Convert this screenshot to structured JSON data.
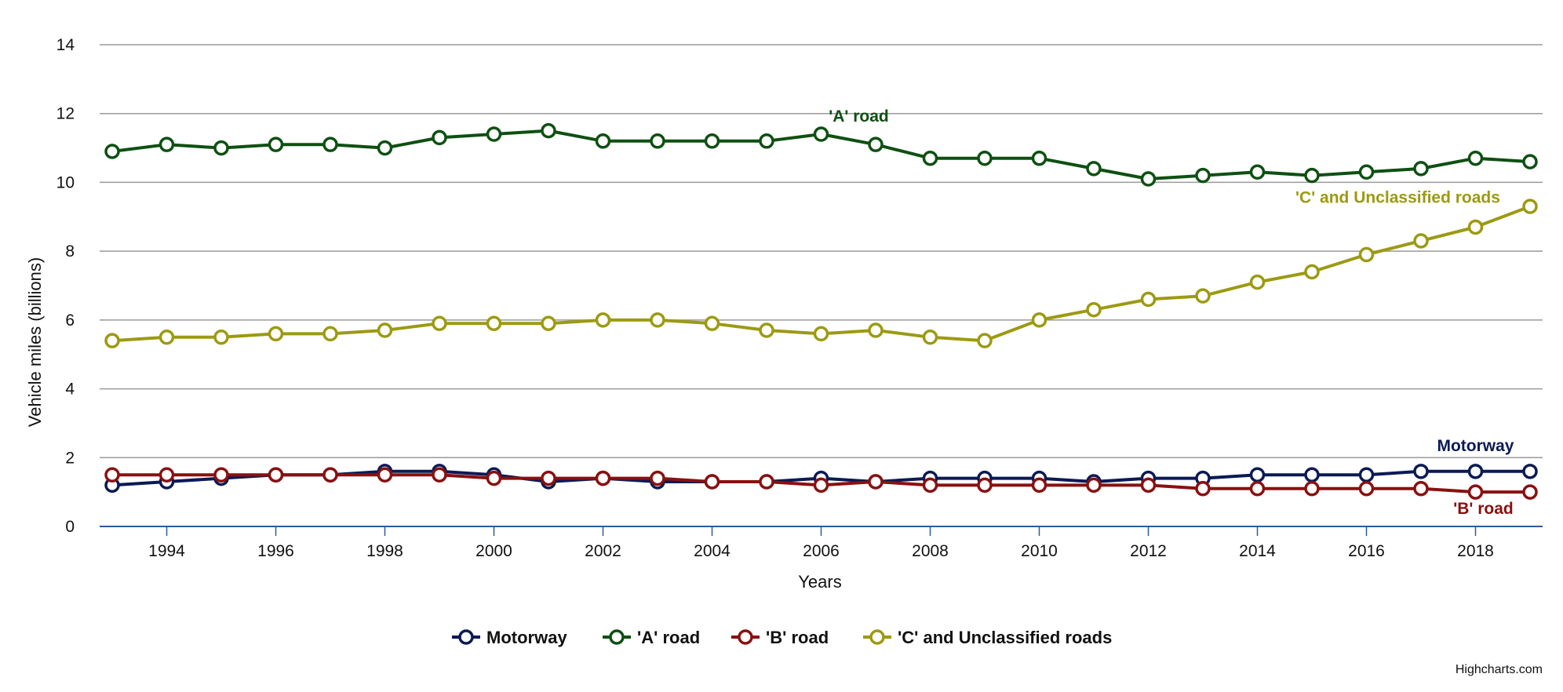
{
  "chart_data": {
    "type": "line",
    "title": "",
    "xlabel": "Years",
    "ylabel": "Vehicle miles (billions)",
    "ylim": [
      0,
      14
    ],
    "yticks": [
      0,
      2,
      4,
      6,
      8,
      10,
      12,
      14
    ],
    "xlim": [
      1993,
      2019
    ],
    "xticks": [
      1994,
      1996,
      1998,
      2000,
      2002,
      2004,
      2006,
      2008,
      2010,
      2012,
      2014,
      2016,
      2018
    ],
    "grid": "horizontal",
    "legend": "bottom-center",
    "x": [
      1993,
      1994,
      1995,
      1996,
      1997,
      1998,
      1999,
      2000,
      2001,
      2002,
      2003,
      2004,
      2005,
      2006,
      2007,
      2008,
      2009,
      2010,
      2011,
      2012,
      2013,
      2014,
      2015,
      2016,
      2017,
      2018,
      2019
    ],
    "series": [
      {
        "name": "Motorway",
        "color": "#0b1a54",
        "label": "Motorway",
        "values": [
          1.2,
          1.3,
          1.4,
          1.5,
          1.5,
          1.6,
          1.6,
          1.5,
          1.3,
          1.4,
          1.3,
          1.3,
          1.3,
          1.4,
          1.3,
          1.4,
          1.4,
          1.4,
          1.3,
          1.4,
          1.4,
          1.5,
          1.5,
          1.5,
          1.6,
          1.6,
          1.6
        ]
      },
      {
        "name": "'A' road",
        "color": "#0e5012",
        "label": "'A' road",
        "values": [
          10.9,
          11.1,
          11.0,
          11.1,
          11.1,
          11.0,
          11.3,
          11.4,
          11.5,
          11.2,
          11.2,
          11.2,
          11.2,
          11.4,
          11.1,
          10.7,
          10.7,
          10.7,
          10.4,
          10.1,
          10.2,
          10.3,
          10.2,
          10.3,
          10.4,
          10.7,
          10.6
        ]
      },
      {
        "name": "'B' road",
        "color": "#8a1010",
        "label": "'B' road",
        "values": [
          1.5,
          1.5,
          1.5,
          1.5,
          1.5,
          1.5,
          1.5,
          1.4,
          1.4,
          1.4,
          1.4,
          1.3,
          1.3,
          1.2,
          1.3,
          1.2,
          1.2,
          1.2,
          1.2,
          1.2,
          1.1,
          1.1,
          1.1,
          1.1,
          1.1,
          1.0,
          1.0
        ]
      },
      {
        "name": "'C' and Unclassified roads",
        "color": "#9c9a12",
        "label": "'C' and Unclassified roads",
        "values": [
          5.4,
          5.5,
          5.5,
          5.6,
          5.6,
          5.7,
          5.9,
          5.9,
          5.9,
          6.0,
          6.0,
          5.9,
          5.7,
          5.6,
          5.7,
          5.5,
          5.4,
          6.0,
          6.3,
          6.6,
          6.7,
          7.1,
          7.4,
          7.9,
          8.3,
          8.7,
          9.3
        ]
      }
    ]
  },
  "credits": "Highcharts.com",
  "colors": {
    "grid": "#9a9a9a",
    "x_axis": "#2b5b9a",
    "background": "#ffffff"
  }
}
